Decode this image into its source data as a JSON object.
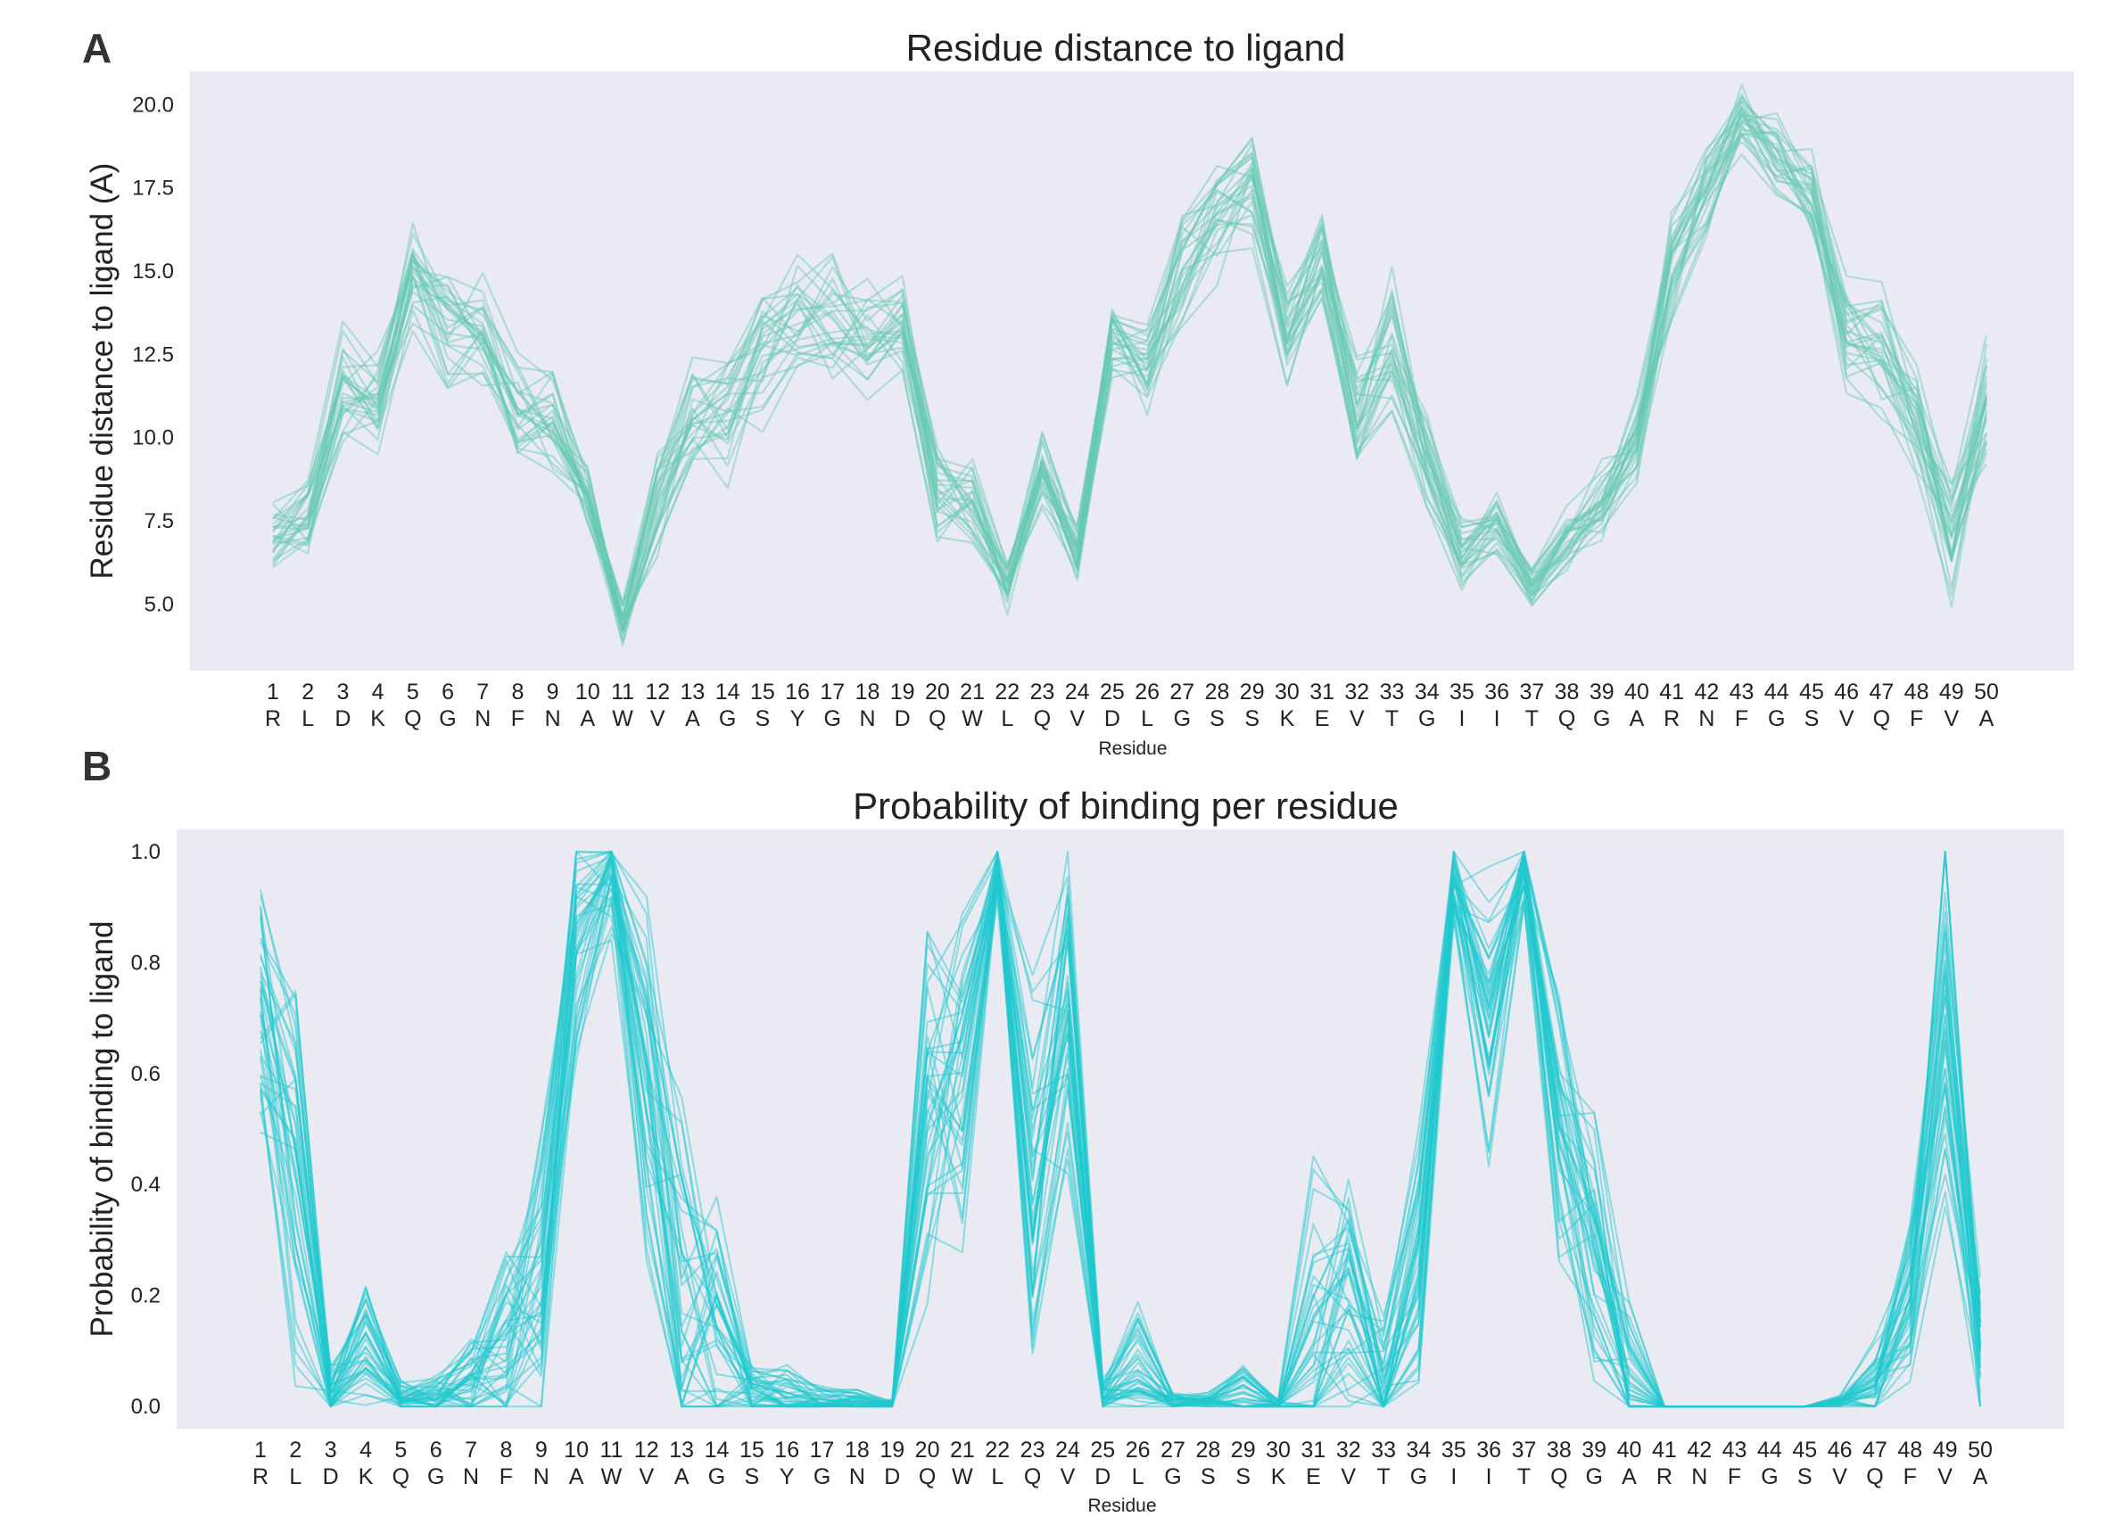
{
  "figure": {
    "panel_a_letter": "A",
    "panel_b_letter": "B"
  },
  "chart_data": [
    {
      "type": "line",
      "panel": "A",
      "title": "Residue distance to ligand",
      "xlabel": "Residue",
      "ylabel": "Residue distance to ligand (A)",
      "ylim": [
        3.0,
        21.0
      ],
      "yticks": [
        "5.0",
        "7.5",
        "10.0",
        "12.5",
        "15.0",
        "17.5",
        "20.0"
      ],
      "grid": false,
      "legend": "none",
      "color": "#66c9b2",
      "x": [
        1,
        2,
        3,
        4,
        5,
        6,
        7,
        8,
        9,
        10,
        11,
        12,
        13,
        14,
        15,
        16,
        17,
        18,
        19,
        20,
        21,
        22,
        23,
        24,
        25,
        26,
        27,
        28,
        29,
        30,
        31,
        32,
        33,
        34,
        35,
        36,
        37,
        38,
        39,
        40,
        41,
        42,
        43,
        44,
        45,
        46,
        47,
        48,
        49,
        50
      ],
      "residue_letters": [
        "R",
        "L",
        "D",
        "K",
        "Q",
        "G",
        "N",
        "F",
        "N",
        "A",
        "W",
        "V",
        "A",
        "G",
        "S",
        "Y",
        "G",
        "N",
        "D",
        "Q",
        "W",
        "L",
        "Q",
        "V",
        "D",
        "L",
        "G",
        "S",
        "S",
        "K",
        "E",
        "V",
        "T",
        "G",
        "I",
        "I",
        "T",
        "Q",
        "G",
        "A",
        "R",
        "N",
        "F",
        "G",
        "S",
        "V",
        "Q",
        "F",
        "V",
        "A"
      ],
      "mean": [
        7.0,
        7.5,
        11.5,
        11.0,
        15.0,
        13.5,
        13.0,
        11.0,
        10.5,
        8.0,
        4.5,
        8.0,
        10.5,
        10.5,
        12.5,
        13.5,
        13.5,
        13.0,
        13.5,
        8.5,
        8.0,
        5.5,
        9.0,
        6.5,
        13.0,
        12.0,
        15.0,
        16.5,
        17.5,
        13.0,
        15.5,
        10.5,
        13.0,
        9.5,
        6.5,
        7.5,
        5.5,
        7.0,
        8.0,
        10.0,
        15.0,
        17.5,
        19.5,
        18.5,
        17.5,
        13.0,
        12.5,
        10.5,
        7.0,
        11.0
      ],
      "spread": [
        0.9,
        0.9,
        1.4,
        1.2,
        1.2,
        1.4,
        1.4,
        1.2,
        1.2,
        1.0,
        0.5,
        1.2,
        1.4,
        1.4,
        1.5,
        1.6,
        1.5,
        1.4,
        1.0,
        1.1,
        0.9,
        0.6,
        0.9,
        0.7,
        0.9,
        1.0,
        1.2,
        1.3,
        1.2,
        1.2,
        1.1,
        1.3,
        1.5,
        1.1,
        0.8,
        0.8,
        0.5,
        0.8,
        0.9,
        1.1,
        1.3,
        1.2,
        0.8,
        0.9,
        1.1,
        1.2,
        1.4,
        1.2,
        1.4,
        1.4
      ],
      "n_series": 28
    },
    {
      "type": "line",
      "panel": "B",
      "title": "Probability of binding per residue",
      "xlabel": "Residue",
      "ylabel": "Probability of binding to ligand",
      "ylim": [
        -0.04,
        1.04
      ],
      "yticks": [
        "0.0",
        "0.2",
        "0.4",
        "0.6",
        "0.8",
        "1.0"
      ],
      "grid": false,
      "legend": "none",
      "color": "#1fc9cf",
      "x": [
        1,
        2,
        3,
        4,
        5,
        6,
        7,
        8,
        9,
        10,
        11,
        12,
        13,
        14,
        15,
        16,
        17,
        18,
        19,
        20,
        21,
        22,
        23,
        24,
        25,
        26,
        27,
        28,
        29,
        30,
        31,
        32,
        33,
        34,
        35,
        36,
        37,
        38,
        39,
        40,
        41,
        42,
        43,
        44,
        45,
        46,
        47,
        48,
        49,
        50
      ],
      "residue_letters": [
        "R",
        "L",
        "D",
        "K",
        "Q",
        "G",
        "N",
        "F",
        "N",
        "A",
        "W",
        "V",
        "A",
        "G",
        "S",
        "Y",
        "G",
        "N",
        "D",
        "Q",
        "W",
        "L",
        "Q",
        "V",
        "D",
        "L",
        "G",
        "S",
        "S",
        "K",
        "E",
        "V",
        "T",
        "G",
        "I",
        "I",
        "T",
        "Q",
        "G",
        "A",
        "R",
        "N",
        "F",
        "G",
        "S",
        "V",
        "Q",
        "F",
        "V",
        "A"
      ],
      "mean": [
        0.7,
        0.45,
        0.02,
        0.12,
        0.02,
        0.02,
        0.04,
        0.15,
        0.25,
        0.85,
        0.95,
        0.6,
        0.25,
        0.15,
        0.03,
        0.02,
        0.01,
        0.01,
        0.0,
        0.55,
        0.6,
        0.97,
        0.4,
        0.75,
        0.02,
        0.08,
        0.01,
        0.01,
        0.03,
        0.0,
        0.15,
        0.2,
        0.05,
        0.25,
        0.95,
        0.7,
        0.97,
        0.55,
        0.3,
        0.05,
        0.0,
        0.0,
        0.0,
        0.0,
        0.0,
        0.01,
        0.05,
        0.2,
        0.75,
        0.1
      ],
      "spread": [
        0.18,
        0.3,
        0.04,
        0.1,
        0.02,
        0.03,
        0.06,
        0.15,
        0.2,
        0.15,
        0.08,
        0.25,
        0.25,
        0.18,
        0.04,
        0.04,
        0.02,
        0.02,
        0.01,
        0.25,
        0.25,
        0.05,
        0.25,
        0.22,
        0.02,
        0.08,
        0.01,
        0.01,
        0.05,
        0.01,
        0.2,
        0.15,
        0.08,
        0.18,
        0.06,
        0.18,
        0.05,
        0.2,
        0.2,
        0.1,
        0.0,
        0.0,
        0.0,
        0.0,
        0.0,
        0.01,
        0.05,
        0.12,
        0.3,
        0.1
      ],
      "n_series": 40
    }
  ]
}
